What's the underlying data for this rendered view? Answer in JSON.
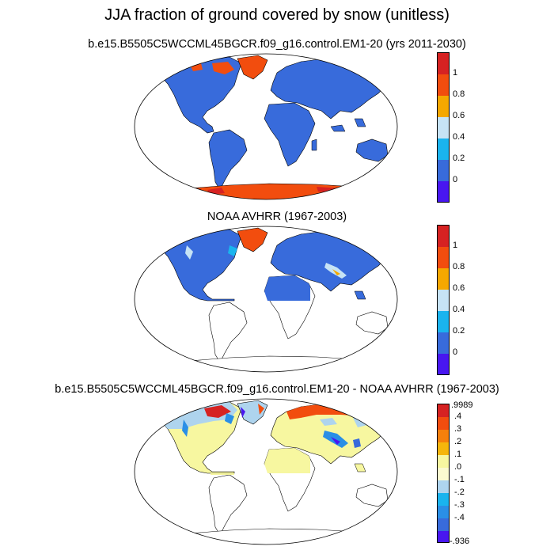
{
  "title": "JJA fraction of ground covered by snow (unitless)",
  "panels": [
    {
      "subtitle": "b.e15.B5505C5WCCML45BGCR.f09_g16.control.EM1-20 (yrs 2011-2030)",
      "colorbar_labels": [
        "1",
        "0.8",
        "0.6",
        "0.4",
        "0.2",
        "0"
      ]
    },
    {
      "subtitle": "NOAA AVHRR (1967-2003)",
      "colorbar_labels": [
        "1",
        "0.8",
        "0.6",
        "0.4",
        "0.2",
        "0"
      ]
    },
    {
      "subtitle": "b.e15.B5505C5WCCML45BGCR.f09_g16.control.EM1-20 - NOAA AVHRR (1967-2003)",
      "colorbar_labels": [
        ".9989",
        ".4",
        ".3",
        ".2",
        ".1",
        ".0",
        "-.1",
        "-.2",
        "-.3",
        "-.4",
        "-.936"
      ]
    }
  ],
  "colors": {
    "abs_scale": [
      "#d62222",
      "#f24d0e",
      "#f5a800",
      "#c6e3f5",
      "#1ab4ee",
      "#386bdb",
      "#4816f0"
    ],
    "diff_scale": [
      "#d62222",
      "#f24d0e",
      "#f5800c",
      "#f5b60c",
      "#f7f7a0",
      "#fbfad0",
      "#aed4ee",
      "#1ab4ee",
      "#2a8fe6",
      "#386bdb",
      "#4816f0"
    ],
    "snow_low": "#386bdb",
    "snow_high": "#f24d0e",
    "diff_zero": "#f7f7a0"
  }
}
